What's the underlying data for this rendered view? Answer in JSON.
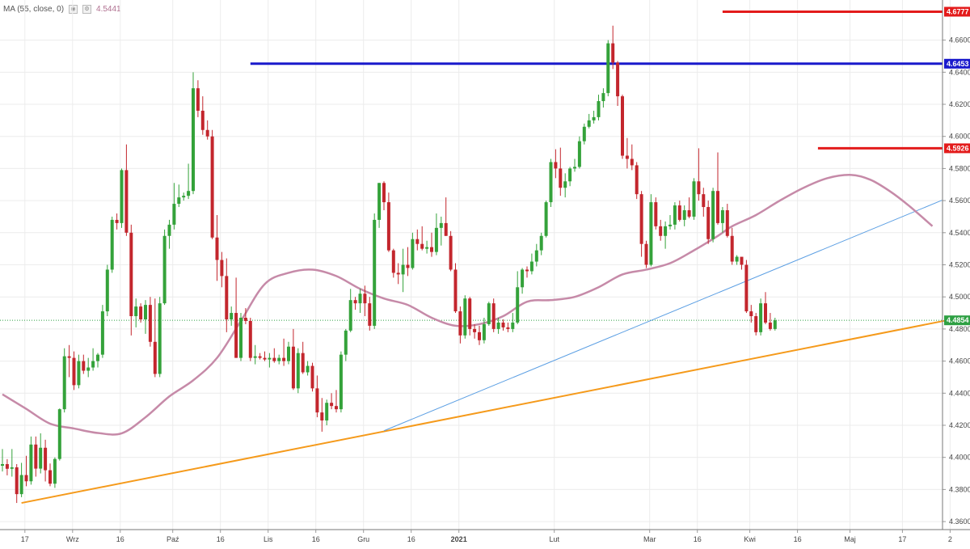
{
  "legend": {
    "label": "MA (55, close, 0)",
    "value": "4.5441",
    "eye_icon": "eye-icon",
    "settings_icon": "settings-icon"
  },
  "colors": {
    "bull": "#34a23a",
    "bear": "#c3262d",
    "ma": "#c68aa8",
    "orange": "#f59a1b",
    "trend": "#5a9ee3",
    "blue_level": "#1a1acc",
    "red_level": "#e31b1b",
    "current": "#2ea043",
    "grid": "#ececec",
    "axis_text": "#444444"
  },
  "chart_data": {
    "type": "candlestick",
    "y_axis": {
      "min": 4.355,
      "max": 4.685,
      "position": "right",
      "ticks": [
        "4.6600",
        "4.6400",
        "4.6200",
        "4.6000",
        "4.5800",
        "4.5600",
        "4.5400",
        "4.5200",
        "4.5000",
        "4.4800",
        "4.4600",
        "4.4400",
        "4.4200",
        "4.4000",
        "4.3800",
        "4.3600"
      ]
    },
    "x_axis": {
      "labels": [
        {
          "text": "17",
          "bar": 2
        },
        {
          "text": "Wrz",
          "bar": 12
        },
        {
          "text": "16",
          "bar": 22
        },
        {
          "text": "Paź",
          "bar": 33
        },
        {
          "text": "16",
          "bar": 43
        },
        {
          "text": "Lis",
          "bar": 53
        },
        {
          "text": "16",
          "bar": 63
        },
        {
          "text": "Gru",
          "bar": 73
        },
        {
          "text": "16",
          "bar": 83
        },
        {
          "text": "2021",
          "bar": 93,
          "bold": true
        },
        {
          "text": "Lut",
          "bar": 113
        },
        {
          "text": "Mar",
          "bar": 133
        },
        {
          "text": "16",
          "bar": 143
        },
        {
          "text": "Kwi",
          "bar": 154
        },
        {
          "text": "16",
          "bar": 164
        },
        {
          "text": "Maj",
          "bar": 175
        },
        {
          "text": "17",
          "bar": 186
        },
        {
          "text": "2",
          "bar": 196
        }
      ]
    },
    "price_labels": [
      {
        "value": 4.6777,
        "text": "4.6777",
        "color": "#e31b1b"
      },
      {
        "value": 4.6453,
        "text": "4.6453",
        "color": "#1a1acc"
      },
      {
        "value": 4.5926,
        "text": "4.5926",
        "color": "#e31b1b"
      },
      {
        "value": 4.4854,
        "text": "4.4854",
        "color": "#2ea043"
      }
    ],
    "horizontal_levels": [
      {
        "from_bar": 52,
        "value": 4.6453,
        "color": "#1a1acc",
        "name": "blue-resistance"
      },
      {
        "from_bar": 151,
        "value": 4.6777,
        "color": "#e31b1b",
        "name": "red-high"
      },
      {
        "from_bar": 171,
        "value": 4.5926,
        "color": "#e31b1b",
        "name": "red-resistance"
      }
    ],
    "current_price": 4.4854,
    "trendlines": [
      {
        "from": [
          4,
          4.3716
        ],
        "to": [
          198,
          4.4854
        ],
        "color": "#f59a1b",
        "width": 2,
        "name": "orange-trendline"
      },
      {
        "from": [
          80,
          4.4166
        ],
        "to": [
          197,
          4.5602
        ],
        "color": "#5a9ee3",
        "width": 1,
        "name": "blue-trendline"
      }
    ],
    "ma": {
      "name": "MA (55, close, 0)",
      "points": [
        [
          0,
          4.4393
        ],
        [
          5,
          4.4302
        ],
        [
          10,
          4.421
        ],
        [
          15,
          4.418
        ],
        [
          20,
          4.4152
        ],
        [
          25,
          4.415
        ],
        [
          30,
          4.425
        ],
        [
          35,
          4.438
        ],
        [
          40,
          4.448
        ],
        [
          45,
          4.462
        ],
        [
          50,
          4.485
        ],
        [
          55,
          4.508
        ],
        [
          60,
          4.515
        ],
        [
          65,
          4.517
        ],
        [
          70,
          4.513
        ],
        [
          75,
          4.505
        ],
        [
          80,
          4.499
        ],
        [
          85,
          4.495
        ],
        [
          90,
          4.487
        ],
        [
          95,
          4.482
        ],
        [
          100,
          4.483
        ],
        [
          105,
          4.488
        ],
        [
          110,
          4.497
        ],
        [
          115,
          4.498
        ],
        [
          120,
          4.5
        ],
        [
          125,
          4.506
        ],
        [
          130,
          4.514
        ],
        [
          135,
          4.517
        ],
        [
          140,
          4.521
        ],
        [
          145,
          4.529
        ],
        [
          150,
          4.538
        ],
        [
          153,
          4.544
        ],
        [
          158,
          4.551
        ],
        [
          163,
          4.56
        ],
        [
          168,
          4.568
        ],
        [
          173,
          4.574
        ],
        [
          178,
          4.576
        ],
        [
          182,
          4.573
        ],
        [
          186,
          4.566
        ],
        [
          190,
          4.557
        ],
        [
          195,
          4.5441
        ]
      ]
    },
    "candles": [
      [
        4.3948,
        4.4052,
        4.3912,
        4.3958
      ],
      [
        4.3958,
        4.3989,
        4.3888,
        4.3929
      ],
      [
        4.3929,
        4.4052,
        4.388,
        4.3938
      ],
      [
        4.3938,
        4.3958,
        4.3716,
        4.3771
      ],
      [
        4.3771,
        4.3966,
        4.3752,
        4.389
      ],
      [
        4.389,
        4.401,
        4.382,
        4.3851
      ],
      [
        4.3851,
        4.413,
        4.383,
        4.408
      ],
      [
        4.408,
        4.413,
        4.388,
        4.393
      ],
      [
        4.393,
        4.415,
        4.39,
        4.406
      ],
      [
        4.406,
        4.411,
        4.385,
        4.392
      ],
      [
        4.392,
        4.3962,
        4.382,
        4.3836
      ],
      [
        4.3836,
        4.4,
        4.381,
        4.399
      ],
      [
        4.399,
        4.4305,
        4.398,
        4.43
      ],
      [
        4.43,
        4.468,
        4.428,
        4.463
      ],
      [
        4.463,
        4.47,
        4.45,
        4.462
      ],
      [
        4.462,
        4.466,
        4.442,
        4.445
      ],
      [
        4.445,
        4.464,
        4.443,
        4.46
      ],
      [
        4.46,
        4.464,
        4.452,
        4.454
      ],
      [
        4.454,
        4.462,
        4.45,
        4.456
      ],
      [
        4.456,
        4.468,
        4.454,
        4.46
      ],
      [
        4.46,
        4.465,
        4.456,
        4.464
      ],
      [
        4.464,
        4.495,
        4.462,
        4.491
      ],
      [
        4.491,
        4.52,
        4.488,
        4.517
      ],
      [
        4.517,
        4.55,
        4.515,
        4.548
      ],
      [
        4.548,
        4.552,
        4.542,
        4.546
      ],
      [
        4.546,
        4.58,
        4.543,
        4.579
      ],
      [
        4.579,
        4.595,
        4.538,
        4.54
      ],
      [
        4.54,
        4.545,
        4.476,
        4.488
      ],
      [
        4.488,
        4.499,
        4.481,
        4.494
      ],
      [
        4.494,
        4.496,
        4.484,
        4.486
      ],
      [
        4.486,
        4.498,
        4.477,
        4.495
      ],
      [
        4.495,
        4.5,
        4.469,
        4.472
      ],
      [
        4.472,
        4.499,
        4.45,
        4.452
      ],
      [
        4.452,
        4.5,
        4.45,
        4.496
      ],
      [
        4.496,
        4.542,
        4.495,
        4.538
      ],
      [
        4.538,
        4.548,
        4.53,
        4.545
      ],
      [
        4.545,
        4.571,
        4.542,
        4.558
      ],
      [
        4.558,
        4.57,
        4.556,
        4.562
      ],
      [
        4.562,
        4.565,
        4.56,
        4.563
      ],
      [
        4.563,
        4.583,
        4.561,
        4.566
      ],
      [
        4.566,
        4.64,
        4.564,
        4.63
      ],
      [
        4.63,
        4.635,
        4.612,
        4.616
      ],
      [
        4.616,
        4.625,
        4.601,
        4.604
      ],
      [
        4.604,
        4.61,
        4.598,
        4.6
      ],
      [
        4.6,
        4.604,
        4.536,
        4.537
      ],
      [
        4.537,
        4.551,
        4.51,
        4.523
      ],
      [
        4.523,
        4.528,
        4.506,
        4.513
      ],
      [
        4.513,
        4.524,
        4.478,
        4.486
      ],
      [
        4.486,
        4.494,
        4.482,
        4.49
      ],
      [
        4.49,
        4.512,
        4.462,
        4.462
      ],
      [
        4.462,
        4.49,
        4.46,
        4.487
      ],
      [
        4.487,
        4.493,
        4.483,
        4.485
      ],
      [
        4.485,
        4.487,
        4.46,
        4.462
      ],
      [
        4.462,
        4.47,
        4.458,
        4.463
      ],
      [
        4.463,
        4.465,
        4.461,
        4.462
      ],
      [
        4.462,
        4.466,
        4.46,
        4.461
      ],
      [
        4.461,
        4.465,
        4.456,
        4.462
      ],
      [
        4.462,
        4.468,
        4.459,
        4.46
      ],
      [
        4.46,
        4.464,
        4.458,
        4.462
      ],
      [
        4.462,
        4.474,
        4.457,
        4.46
      ],
      [
        4.46,
        4.472,
        4.458,
        4.469
      ],
      [
        4.469,
        4.48,
        4.442,
        4.443
      ],
      [
        4.443,
        4.468,
        4.44,
        4.465
      ],
      [
        4.465,
        4.472,
        4.452,
        4.453
      ],
      [
        4.453,
        4.46,
        4.451,
        4.457
      ],
      [
        4.457,
        4.459,
        4.441,
        4.443
      ],
      [
        4.443,
        4.451,
        4.425,
        4.428
      ],
      [
        4.428,
        4.437,
        4.416,
        4.423
      ],
      [
        4.423,
        4.436,
        4.42,
        4.434
      ],
      [
        4.434,
        4.44,
        4.43,
        4.432
      ],
      [
        4.432,
        4.442,
        4.428,
        4.43
      ],
      [
        4.43,
        4.466,
        4.428,
        4.464
      ],
      [
        4.464,
        4.48,
        4.46,
        4.479
      ],
      [
        4.479,
        4.505,
        4.478,
        4.498
      ],
      [
        4.498,
        4.5,
        4.492,
        4.496
      ],
      [
        4.496,
        4.505,
        4.49,
        4.502
      ],
      [
        4.502,
        4.507,
        4.488,
        4.496
      ],
      [
        4.496,
        4.5,
        4.479,
        4.482
      ],
      [
        4.482,
        4.552,
        4.48,
        4.548
      ],
      [
        4.548,
        4.571,
        4.543,
        4.571
      ],
      [
        4.571,
        4.572,
        4.554,
        4.559
      ],
      [
        4.559,
        4.565,
        4.528,
        4.529
      ],
      [
        4.529,
        4.53,
        4.512,
        4.515
      ],
      [
        4.515,
        4.521,
        4.508,
        4.514
      ],
      [
        4.514,
        4.53,
        4.503,
        4.52
      ],
      [
        4.52,
        4.531,
        4.513,
        4.518
      ],
      [
        4.518,
        4.54,
        4.517,
        4.536
      ],
      [
        4.536,
        4.542,
        4.529,
        4.533
      ],
      [
        4.533,
        4.544,
        4.529,
        4.53
      ],
      [
        4.53,
        4.535,
        4.527,
        4.531
      ],
      [
        4.531,
        4.54,
        4.525,
        4.528
      ],
      [
        4.528,
        4.552,
        4.526,
        4.543
      ],
      [
        4.543,
        4.55,
        4.532,
        4.546
      ],
      [
        4.546,
        4.562,
        4.538,
        4.538
      ],
      [
        4.538,
        4.541,
        4.516,
        4.517
      ],
      [
        4.517,
        4.521,
        4.49,
        4.491
      ],
      [
        4.491,
        4.494,
        4.471,
        4.476
      ],
      [
        4.476,
        4.501,
        4.474,
        4.499
      ],
      [
        4.499,
        4.5,
        4.476,
        4.48
      ],
      [
        4.48,
        4.483,
        4.474,
        4.478
      ],
      [
        4.478,
        4.482,
        4.47,
        4.473
      ],
      [
        4.473,
        4.487,
        4.471,
        4.483
      ],
      [
        4.483,
        4.497,
        4.482,
        4.496
      ],
      [
        4.496,
        4.499,
        4.478,
        4.48
      ],
      [
        4.48,
        4.487,
        4.477,
        4.484
      ],
      [
        4.484,
        4.486,
        4.479,
        4.481
      ],
      [
        4.481,
        4.484,
        4.478,
        4.48
      ],
      [
        4.48,
        4.49,
        4.478,
        4.484
      ],
      [
        4.484,
        4.516,
        4.483,
        4.506
      ],
      [
        4.506,
        4.518,
        4.502,
        4.517
      ],
      [
        4.517,
        4.519,
        4.512,
        4.516
      ],
      [
        4.516,
        4.527,
        4.514,
        4.522
      ],
      [
        4.522,
        4.533,
        4.519,
        4.529
      ],
      [
        4.529,
        4.54,
        4.526,
        4.538
      ],
      [
        4.538,
        4.56,
        4.537,
        4.559
      ],
      [
        4.559,
        4.586,
        4.556,
        4.584
      ],
      [
        4.584,
        4.592,
        4.574,
        4.58
      ],
      [
        4.58,
        4.593,
        4.563,
        4.568
      ],
      [
        4.568,
        4.577,
        4.562,
        4.572
      ],
      [
        4.572,
        4.581,
        4.569,
        4.58
      ],
      [
        4.58,
        4.586,
        4.578,
        4.581
      ],
      [
        4.581,
        4.6,
        4.58,
        4.597
      ],
      [
        4.597,
        4.608,
        4.595,
        4.606
      ],
      [
        4.606,
        4.614,
        4.605,
        4.61
      ],
      [
        4.61,
        4.616,
        4.608,
        4.612
      ],
      [
        4.612,
        4.626,
        4.61,
        4.622
      ],
      [
        4.622,
        4.63,
        4.618,
        4.627
      ],
      [
        4.627,
        4.66,
        4.625,
        4.658
      ],
      [
        4.658,
        4.669,
        4.642,
        4.646
      ],
      [
        4.646,
        4.647,
        4.619,
        4.625
      ],
      [
        4.625,
        4.626,
        4.586,
        4.588
      ],
      [
        4.588,
        4.599,
        4.58,
        4.586
      ],
      [
        4.586,
        4.595,
        4.579,
        4.582
      ],
      [
        4.582,
        4.584,
        4.561,
        4.564
      ],
      [
        4.564,
        4.566,
        4.525,
        4.533
      ],
      [
        4.533,
        4.535,
        4.518,
        4.52
      ],
      [
        4.52,
        4.564,
        4.519,
        4.559
      ],
      [
        4.559,
        4.562,
        4.542,
        4.544
      ],
      [
        4.544,
        4.548,
        4.535,
        4.538
      ],
      [
        4.538,
        4.547,
        4.53,
        4.544
      ],
      [
        4.544,
        4.551,
        4.542,
        4.545
      ],
      [
        4.545,
        4.559,
        4.542,
        4.557
      ],
      [
        4.557,
        4.56,
        4.547,
        4.548
      ],
      [
        4.548,
        4.557,
        4.544,
        4.554
      ],
      [
        4.554,
        4.562,
        4.549,
        4.55
      ],
      [
        4.55,
        4.574,
        4.548,
        4.572
      ],
      [
        4.572,
        4.5926,
        4.56,
        4.564
      ],
      [
        4.564,
        4.568,
        4.55,
        4.556
      ],
      [
        4.556,
        4.56,
        4.533,
        4.536
      ],
      [
        4.536,
        4.568,
        4.534,
        4.566
      ],
      [
        4.566,
        4.59,
        4.545,
        4.546
      ],
      [
        4.546,
        4.556,
        4.54,
        4.554
      ],
      [
        4.554,
        4.558,
        4.537,
        4.538
      ],
      [
        4.538,
        4.543,
        4.52,
        4.522
      ],
      [
        4.522,
        4.526,
        4.52,
        4.525
      ],
      [
        4.525,
        4.524,
        4.517,
        4.52
      ],
      [
        4.52,
        4.523,
        4.49,
        4.491
      ],
      [
        4.491,
        4.495,
        4.484,
        4.488
      ],
      [
        4.488,
        4.49,
        4.476,
        4.478
      ],
      [
        4.478,
        4.499,
        4.476,
        4.496
      ],
      [
        4.496,
        4.503,
        4.483,
        4.484
      ],
      [
        4.484,
        4.49,
        4.479,
        4.48
      ],
      [
        4.48,
        4.487,
        4.479,
        4.4854
      ]
    ]
  }
}
